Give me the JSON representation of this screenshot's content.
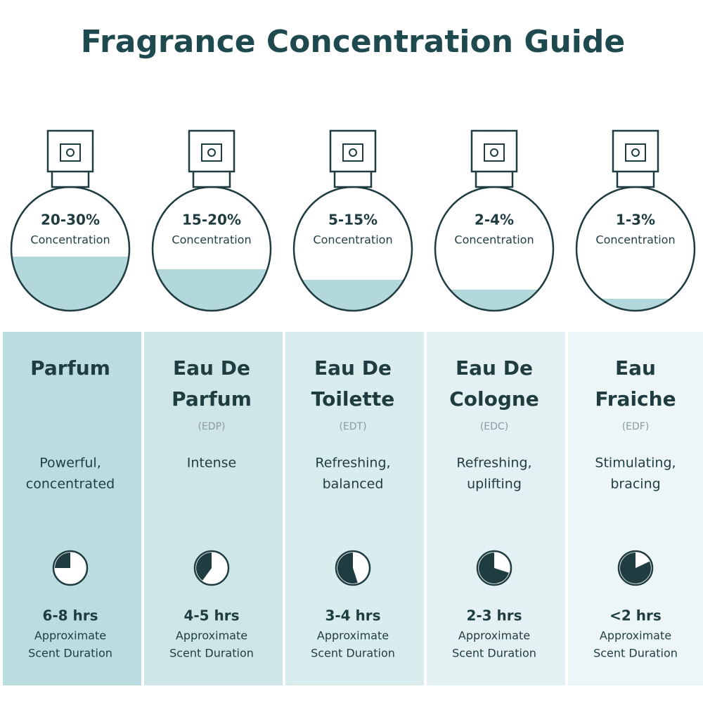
{
  "title": "Fragrance Concentration Guide",
  "columns": [
    {
      "concentration": "20-30%",
      "concentration_label": "Concentration",
      "name": [
        "Parfum"
      ],
      "description": [
        "Powerful,",
        "concentrated"
      ],
      "duration": "6-8 hrs",
      "duration_note": [
        "Approximate",
        "Scent Duration"
      ]
    },
    {
      "concentration": "15-20%",
      "concentration_label": "Concentration",
      "name": [
        "Eau De",
        "Parfum"
      ],
      "abbreviation": "(EDP)",
      "description": [
        "Intense"
      ],
      "duration": "4-5 hrs",
      "duration_note": [
        "Approximate",
        "Scent Duration"
      ]
    },
    {
      "concentration": "5-15%",
      "concentration_label": "Concentration",
      "name": [
        "Eau De",
        "Toilette"
      ],
      "abbreviation": "(EDT)",
      "description": [
        "Refreshing,",
        "balanced"
      ],
      "duration": "3-4 hrs",
      "duration_note": [
        "Approximate",
        "Scent Duration"
      ]
    },
    {
      "concentration": "2-4%",
      "concentration_label": "Concentration",
      "name": [
        "Eau De",
        "Cologne"
      ],
      "abbreviation": "(EDC)",
      "description": [
        "Refreshing,",
        "uplifting"
      ],
      "duration": "2-3 hrs",
      "duration_note": [
        "Approximate",
        "Scent Duration"
      ]
    },
    {
      "concentration": "1-3%",
      "concentration_label": "Concentration",
      "name": [
        "Eau",
        "Fraiche"
      ],
      "abbreviation": "(EDF)",
      "description": [
        "Stimulating,",
        "bracing"
      ],
      "duration": "<2 hrs",
      "duration_note": [
        "Approximate",
        "Scent Duration"
      ]
    }
  ]
}
